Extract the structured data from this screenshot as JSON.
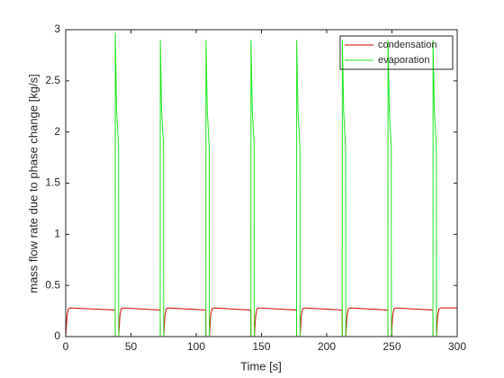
{
  "chart_data": {
    "type": "line",
    "xlabel": "Time [s]",
    "ylabel": "mass flow rate due to phase change [kg/s]",
    "x": [
      0,
      1,
      2,
      3.5,
      37.9,
      38,
      39,
      40.5,
      40.6,
      41.5,
      42.5,
      44,
      72.4,
      72.5,
      73.5,
      75,
      75.1,
      76,
      77,
      78.5,
      107.4,
      107.5,
      108.5,
      110,
      110.1,
      111,
      112,
      113.5,
      141.9,
      142,
      143,
      144.5,
      144.6,
      145.5,
      146.5,
      148,
      176.9,
      177,
      178,
      179.5,
      179.6,
      180.5,
      181.5,
      183,
      211.9,
      212,
      213,
      214.5,
      214.6,
      215.5,
      216.5,
      218,
      246.9,
      247,
      248,
      249.5,
      249.6,
      250.5,
      251.5,
      253,
      281.4,
      281.5,
      282.5,
      284,
      284.1,
      285,
      286,
      287.5,
      300
    ],
    "series": [
      {
        "name": "condensation",
        "color": "#d40000",
        "values": [
          0,
          0.2,
          0.27,
          0.28,
          0.26,
          0,
          0,
          0,
          0,
          0.2,
          0.27,
          0.28,
          0.26,
          0,
          0,
          0,
          0,
          0.2,
          0.27,
          0.28,
          0.26,
          0,
          0,
          0,
          0,
          0.2,
          0.27,
          0.28,
          0.26,
          0,
          0,
          0,
          0,
          0.2,
          0.27,
          0.28,
          0.26,
          0,
          0,
          0,
          0,
          0.2,
          0.27,
          0.28,
          0.26,
          0,
          0,
          0,
          0,
          0.2,
          0.27,
          0.28,
          0.26,
          0,
          0,
          0,
          0,
          0.2,
          0.27,
          0.28,
          0.26,
          0,
          0,
          0,
          0,
          0.2,
          0.27,
          0.28,
          0.28
        ]
      },
      {
        "name": "evaporation",
        "color": "#1ee61e",
        "values": [
          0,
          0,
          0,
          0,
          0,
          2.97,
          2.2,
          1.85,
          0,
          0,
          0,
          0,
          0,
          2.9,
          2.2,
          1.85,
          0,
          0,
          0,
          0,
          0,
          2.9,
          2.2,
          1.85,
          0,
          0,
          0,
          0,
          0,
          2.9,
          2.2,
          1.85,
          0,
          0,
          0,
          0,
          0,
          2.9,
          2.2,
          1.85,
          0,
          0,
          0,
          0,
          0,
          2.9,
          2.2,
          1.85,
          0,
          0,
          0,
          0,
          0,
          2.9,
          2.2,
          1.85,
          0,
          0,
          0,
          0,
          0,
          2.9,
          2.2,
          1.85,
          0,
          0,
          0,
          0,
          0
        ]
      }
    ],
    "xlim": [
      0,
      300
    ],
    "xticks": [
      0,
      50,
      100,
      150,
      200,
      250,
      300
    ],
    "ylim": [
      0,
      3
    ],
    "yticks": [
      0,
      0.5,
      1,
      1.5,
      2,
      2.5,
      3
    ],
    "legend": "northeast"
  }
}
